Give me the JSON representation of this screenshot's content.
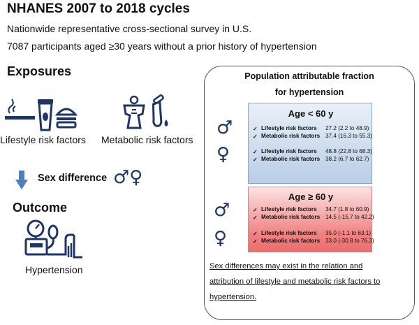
{
  "header": {
    "title": "NHANES 2007 to 2018 cycles",
    "line1": "Nationwide representative cross-sectional survey  in U.S.",
    "line2": "7087 participants aged ≥30 years without a prior history of hypertension"
  },
  "left": {
    "exposures": "Exposures",
    "lifestyle_label": "Lifestyle risk factors",
    "metabolic_label": "Metabolic risk factors",
    "sex_difference": "Sex difference",
    "sex_symbols": "♂♀",
    "outcome": "Outcome",
    "hypertension": "Hypertension"
  },
  "panel": {
    "title1": "Population attributable fraction",
    "title2": "for hypertension",
    "male_symbol": "♂",
    "female_symbol": "♀",
    "check": "✓",
    "under60": {
      "header": "Age < 60 y",
      "rows": [
        {
          "label": "Lifestyle risk factors",
          "value": "27.2 (2.2 to 48.9)"
        },
        {
          "label": "Metabolic risk factors",
          "value": "37.4 (16.3 to 55.3)"
        },
        {
          "label": "Lifestyle risk factors",
          "value": "48.8 (22.8 to 68.3)"
        },
        {
          "label": "Metabolic risk factors",
          "value": "38.2 (6.7 to 62.7)"
        }
      ]
    },
    "over60": {
      "header": "Age ≥ 60 y",
      "rows": [
        {
          "label": "Lifestyle risk factors",
          "value": "34.7 (1.8 to 60.9)"
        },
        {
          "label": "Metabolic risk factors",
          "value": "14.5 (-15.7 to 42.2)"
        },
        {
          "label": "Lifestyle risk factors",
          "value": "35.0 (-1.1 to 63.1)"
        },
        {
          "label": "Metabolic risk factors",
          "value": "33.0 (-30.8 to 76.3)"
        }
      ]
    },
    "conclusion": [
      "Sex differences  may exist in the relation and",
      "attribution of lifestyle and metabolic risk factors to",
      "hypertension."
    ]
  },
  "colors": {
    "icon_blue": "#1f3564",
    "arrow_blue": "#4a7fc1",
    "red_box": "#f08080",
    "blue_box": "#b9cde6"
  }
}
